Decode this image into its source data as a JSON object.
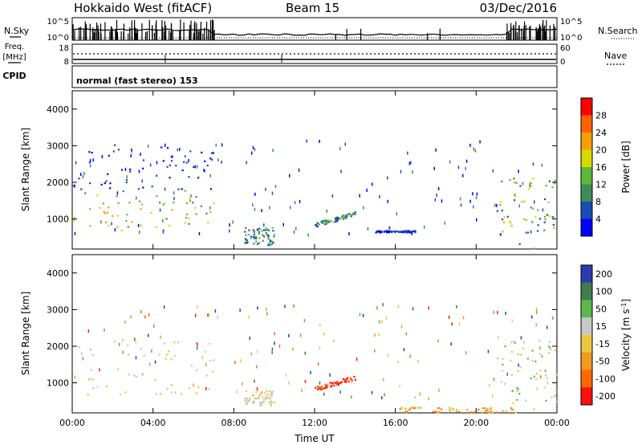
{
  "header": {
    "title": "Hokkaido West (fitACF)",
    "beam": "Beam 15",
    "date": "03/Dec/2016"
  },
  "mode_label": "normal (fast stereo) 153",
  "side_labels": {
    "nsky": "N.Sky",
    "nsearch": "N.Search",
    "freq": "Freq.",
    "freq_unit": "[MHz]",
    "cpid": "CPID",
    "nave": "Nave"
  },
  "top_panels": {
    "nsky_ticks": [
      "10^5",
      "10^0"
    ],
    "nsearch_ticks": [
      "10^5",
      "10^0"
    ],
    "freq_ticks": [
      "18",
      "8"
    ],
    "nave_ticks": [
      "60",
      "0"
    ]
  },
  "colors": {
    "power": [
      "#0000ff",
      "#1a4db3",
      "#3e8c5c",
      "#5eb83a",
      "#d8d800",
      "#f5a000",
      "#ff6000",
      "#ff0000"
    ],
    "velocity": [
      "#2c3bb0",
      "#3e7d4e",
      "#5cb84a",
      "#c8c8c8",
      "#e8c840",
      "#f09a20",
      "#ff6a00",
      "#ff1010"
    ]
  },
  "chart_data": [
    {
      "type": "heatmap",
      "name": "Power",
      "xlabel": "",
      "ylabel": "Slant Range [km]",
      "x_ticks": [
        "00:00",
        "04:00",
        "08:00",
        "12:00",
        "16:00",
        "20:00",
        "00:00"
      ],
      "xlim": [
        0,
        24
      ],
      "ylim": [
        180,
        4500
      ],
      "y_ticks": [
        1000,
        2000,
        3000,
        4000
      ],
      "colorbar": {
        "label": "Power [dB]",
        "ticks": [
          4,
          8,
          12,
          16,
          20,
          24,
          28
        ],
        "range": [
          0,
          32
        ]
      },
      "features": [
        {
          "region": "morning band",
          "t": [
            0,
            7
          ],
          "range_km": [
            700,
            1800
          ],
          "power_db": [
            12,
            24
          ]
        },
        {
          "region": "morning scatter",
          "t": [
            0,
            7
          ],
          "range_km": [
            1800,
            3100
          ],
          "power_db": [
            4,
            8
          ]
        },
        {
          "region": "near range echo",
          "t": [
            8.5,
            10
          ],
          "range_km": [
            300,
            800
          ],
          "power_db": [
            8,
            16
          ]
        },
        {
          "region": "midday streak",
          "t": [
            12,
            14
          ],
          "range_km": [
            800,
            1100
          ],
          "power_db": [
            8,
            16
          ]
        },
        {
          "region": "afternoon trail",
          "t": [
            15,
            17
          ],
          "range_km": [
            650,
            700
          ],
          "power_db": [
            4,
            8
          ]
        },
        {
          "region": "evening band",
          "t": [
            21,
            24
          ],
          "range_km": [
            200,
            2200
          ],
          "power_db": [
            8,
            24
          ]
        }
      ]
    },
    {
      "type": "heatmap",
      "name": "Velocity",
      "xlabel": "Time UT",
      "ylabel": "Slant Range [km]",
      "x_ticks": [
        "00:00",
        "04:00",
        "08:00",
        "12:00",
        "16:00",
        "20:00",
        "00:00"
      ],
      "xlim": [
        0,
        24
      ],
      "ylim": [
        180,
        4500
      ],
      "y_ticks": [
        1000,
        2000,
        3000,
        4000
      ],
      "colorbar": {
        "label": "Velocity [m s^-1]",
        "ticks": [
          "200",
          "100",
          "50",
          "15",
          "-15",
          "-50",
          "-100",
          "-200"
        ]
      },
      "features": [
        {
          "region": "morning band",
          "t": [
            0,
            7
          ],
          "range_km": [
            700,
            2200
          ],
          "velocity": [
            -15,
            15
          ]
        },
        {
          "region": "near range echo",
          "t": [
            8.5,
            10
          ],
          "range_km": [
            400,
            800
          ],
          "velocity": [
            -15,
            15
          ]
        },
        {
          "region": "midday streak",
          "t": [
            12,
            14
          ],
          "range_km": [
            800,
            1200
          ],
          "velocity": [
            -200,
            -100
          ]
        },
        {
          "region": "evening near range",
          "t": [
            16,
            22
          ],
          "range_km": [
            200,
            350
          ],
          "velocity": [
            -100,
            -15
          ]
        },
        {
          "region": "evening band",
          "t": [
            21,
            24
          ],
          "range_km": [
            300,
            2200
          ],
          "velocity": [
            -15,
            50
          ]
        }
      ]
    }
  ]
}
